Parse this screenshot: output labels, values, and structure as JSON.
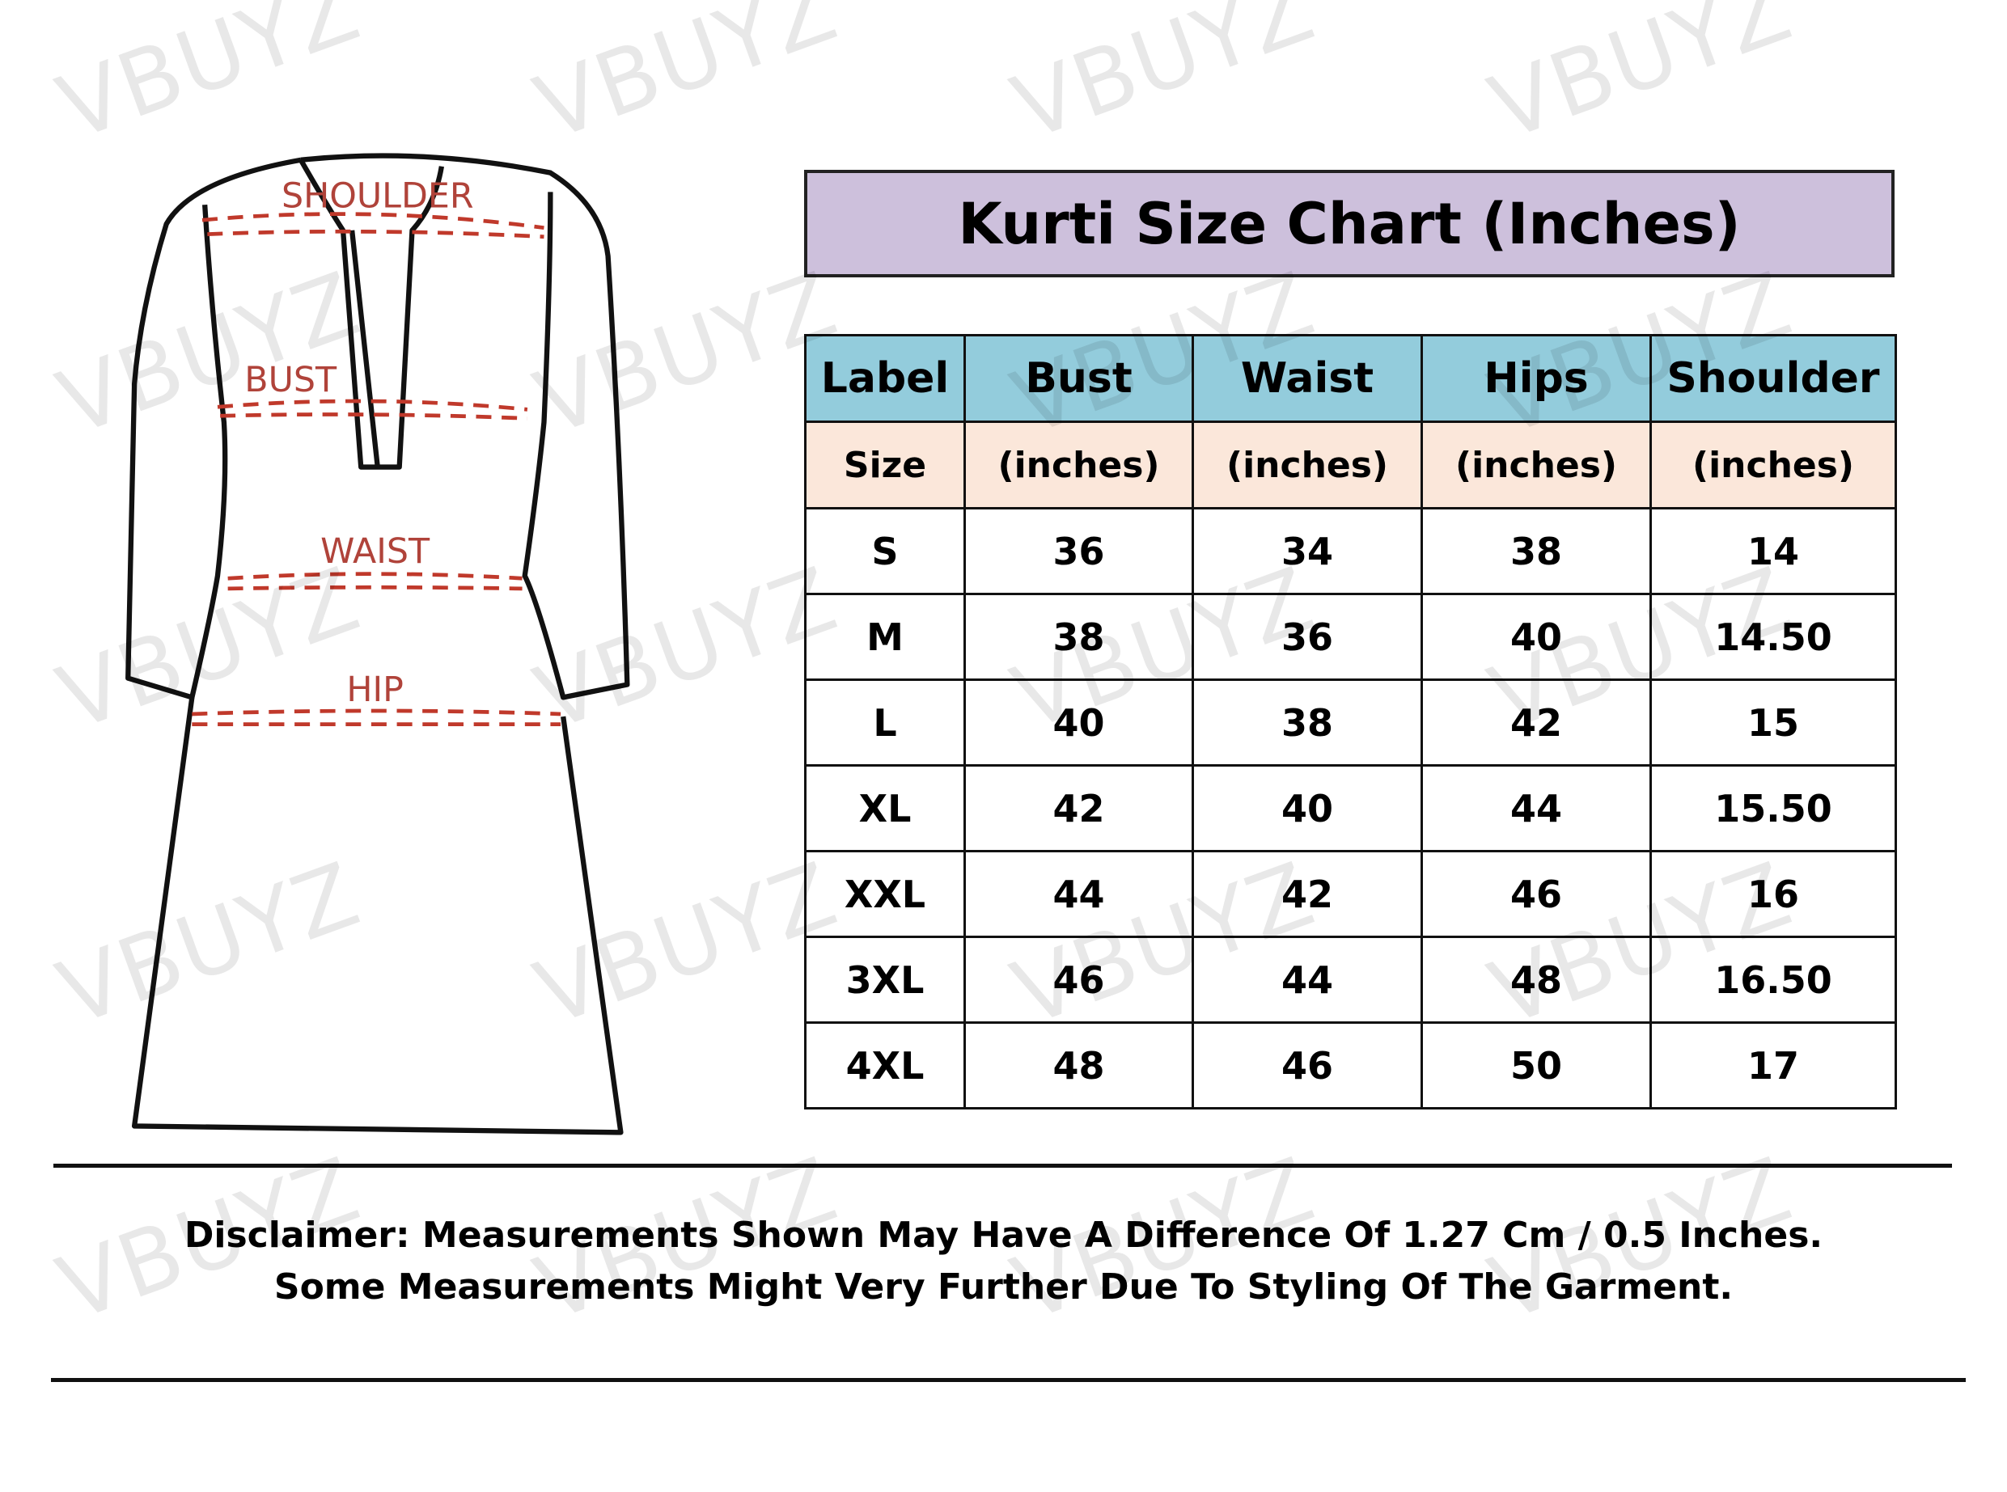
{
  "watermark": "VBUYZ",
  "diagram_labels": {
    "shoulder": "SHOULDER",
    "bust": "BUST",
    "waist": "WAIST",
    "hip": "HIP"
  },
  "colors": {
    "title_bg": "#cdc0dc",
    "header_bg": "#93ccdc",
    "subheader_bg": "#fbe7da",
    "measure_line": "#c0392b"
  },
  "title": "Kurti Size Chart (Inches)",
  "table": {
    "headers": [
      "Label",
      "Bust",
      "Waist",
      "Hips",
      "Shoulder"
    ],
    "subheaders": [
      "Size",
      "(inches)",
      "(inches)",
      "(inches)",
      "(inches)"
    ],
    "rows": [
      [
        "S",
        "36",
        "34",
        "38",
        "14"
      ],
      [
        "M",
        "38",
        "36",
        "40",
        "14.50"
      ],
      [
        "L",
        "40",
        "38",
        "42",
        "15"
      ],
      [
        "XL",
        "42",
        "40",
        "44",
        "15.50"
      ],
      [
        "XXL",
        "44",
        "42",
        "46",
        "16"
      ],
      [
        "3XL",
        "46",
        "44",
        "48",
        "16.50"
      ],
      [
        "4XL",
        "48",
        "46",
        "50",
        "17"
      ]
    ]
  },
  "disclaimer": {
    "line1": "Disclaimer: Measurements Shown May Have A Difference Of 1.27 Cm / 0.5 Inches.",
    "line2": "Some Measurements Might Very Further Due To Styling Of The Garment."
  }
}
